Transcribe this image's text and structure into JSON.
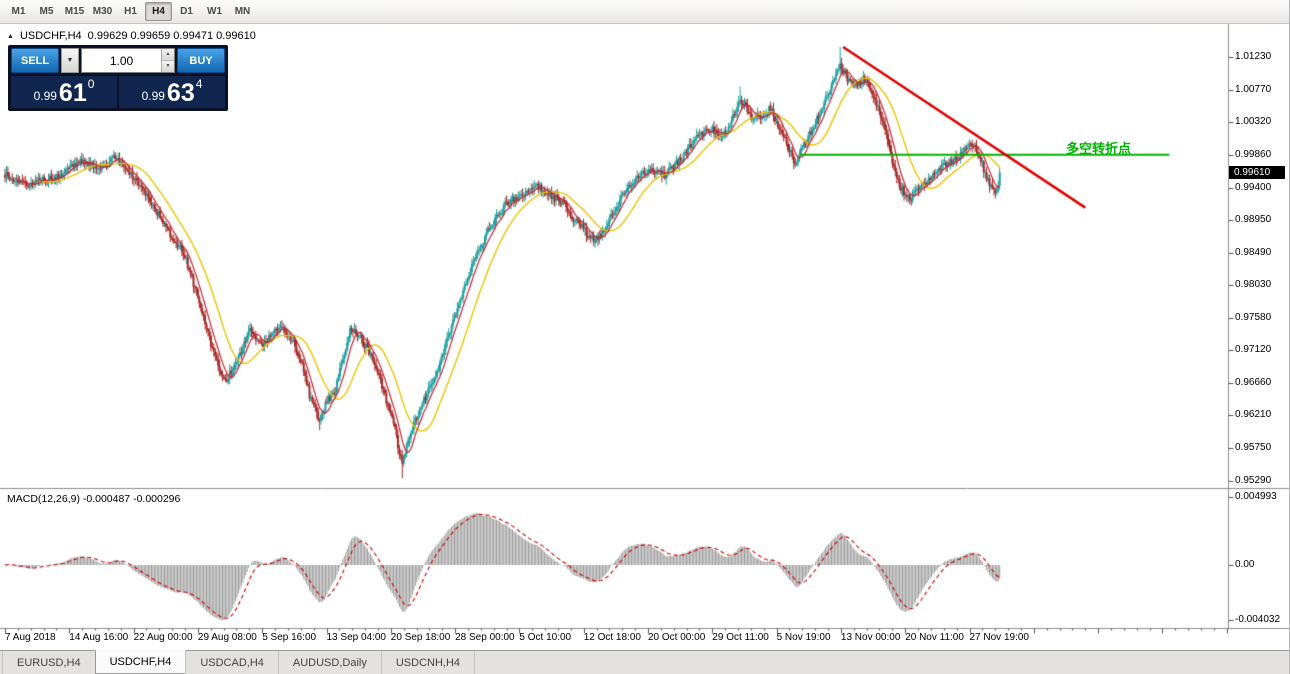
{
  "toolbar": {
    "timeframes": [
      {
        "label": "M1",
        "active": false
      },
      {
        "label": "M5",
        "active": false
      },
      {
        "label": "M15",
        "active": false
      },
      {
        "label": "M30",
        "active": false
      },
      {
        "label": "H1",
        "active": false
      },
      {
        "label": "H4",
        "active": true
      },
      {
        "label": "D1",
        "active": false
      },
      {
        "label": "W1",
        "active": false
      },
      {
        "label": "MN",
        "active": false
      }
    ]
  },
  "icons": {
    "collapse": "▲",
    "dropdown": "▼",
    "spin_up": "▲",
    "spin_down": "▼"
  },
  "chart": {
    "symbol_label": "USDCHF,H4",
    "ohlc_text": "0.99629 0.99659 0.99471 0.99610",
    "current_price": "0.99610",
    "annotation_text": "多空转折点",
    "trade_panel": {
      "sell_label": "SELL",
      "buy_label": "BUY",
      "volume": "1.00",
      "sell_price": {
        "big": "0.99",
        "mid": "61",
        "sup": "0"
      },
      "buy_price": {
        "big": "0.99",
        "mid": "63",
        "sup": "4"
      }
    },
    "price_axis": [
      "1.01230",
      "1.00770",
      "1.00320",
      "0.99860",
      "0.99400",
      "0.98950",
      "0.98490",
      "0.98030",
      "0.97580",
      "0.97120",
      "0.96660",
      "0.96210",
      "0.95750",
      "0.95290"
    ],
    "time_axis": [
      "7 Aug 2018",
      "14 Aug 16:00",
      "22 Aug 00:00",
      "29 Aug 08:00",
      "5 Sep 16:00",
      "13 Sep 04:00",
      "20 Sep 18:00",
      "28 Sep 00:00",
      "5 Oct 10:00",
      "12 Oct 18:00",
      "20 Oct 00:00",
      "29 Oct 11:00",
      "5 Nov 19:00",
      "13 Nov 00:00",
      "20 Nov 11:00",
      "27 Nov 19:00"
    ]
  },
  "macd": {
    "label": "MACD(12,26,9) -0.000487 -0.000296",
    "axis": [
      "0.004993",
      "0.00",
      "-0.004032"
    ]
  },
  "tabs": [
    {
      "label": "EURUSD,H4",
      "active": false
    },
    {
      "label": "USDCHF,H4",
      "active": true
    },
    {
      "label": "USDCAD,H4",
      "active": false
    },
    {
      "label": "AUDUSD,Daily",
      "active": false
    },
    {
      "label": "USDCNH,H4",
      "active": false
    }
  ],
  "chart_data": {
    "type": "candlestick",
    "symbol": "USDCHF",
    "timeframe": "H4",
    "bars": 687,
    "last_close": 0.9961,
    "ylim": [
      0.9529,
      1.0123
    ],
    "colors": {
      "up": "#20a0a0",
      "down": "#a82828",
      "ma_fast": "#cc2233",
      "ma_slow": "#e9c400",
      "macd_hist": "#9a9a9a",
      "macd_signal": "#cc0000",
      "trendline": "#dd0000",
      "hline": "#00b300"
    },
    "indicators": {
      "ma_fast_period": 8,
      "ma_slow_period": 24,
      "macd": [
        12,
        26,
        9
      ]
    },
    "price_anchors": [
      [
        0,
        0.9958
      ],
      [
        8,
        0.995
      ],
      [
        17,
        0.9944
      ],
      [
        26,
        0.995
      ],
      [
        34,
        0.9954
      ],
      [
        44,
        0.9966
      ],
      [
        52,
        0.9976
      ],
      [
        60,
        0.997
      ],
      [
        66,
        0.9965
      ],
      [
        76,
        0.9985
      ],
      [
        86,
        0.9958
      ],
      [
        100,
        0.9923
      ],
      [
        114,
        0.9874
      ],
      [
        124,
        0.9846
      ],
      [
        131,
        0.98
      ],
      [
        138,
        0.975
      ],
      [
        145,
        0.97
      ],
      [
        152,
        0.9668
      ],
      [
        158,
        0.969
      ],
      [
        162,
        0.9706
      ],
      [
        169,
        0.9741
      ],
      [
        175,
        0.9726
      ],
      [
        179,
        0.972
      ],
      [
        185,
        0.9736
      ],
      [
        190,
        0.9744
      ],
      [
        196,
        0.973
      ],
      [
        200,
        0.972
      ],
      [
        205,
        0.969
      ],
      [
        210,
        0.965
      ],
      [
        217,
        0.9613
      ],
      [
        222,
        0.964
      ],
      [
        228,
        0.9657
      ],
      [
        233,
        0.97
      ],
      [
        238,
        0.9742
      ],
      [
        243,
        0.9735
      ],
      [
        248,
        0.972
      ],
      [
        254,
        0.97
      ],
      [
        259,
        0.9671
      ],
      [
        264,
        0.9635
      ],
      [
        269,
        0.96
      ],
      [
        272,
        0.957
      ],
      [
        274,
        0.9552
      ],
      [
        277,
        0.958
      ],
      [
        283,
        0.9615
      ],
      [
        288,
        0.964
      ],
      [
        293,
        0.9658
      ],
      [
        298,
        0.968
      ],
      [
        303,
        0.9713
      ],
      [
        308,
        0.9745
      ],
      [
        314,
        0.9783
      ],
      [
        319,
        0.9815
      ],
      [
        324,
        0.984
      ],
      [
        329,
        0.9862
      ],
      [
        334,
        0.9882
      ],
      [
        340,
        0.99
      ],
      [
        345,
        0.9916
      ],
      [
        350,
        0.9922
      ],
      [
        355,
        0.993
      ],
      [
        360,
        0.9938
      ],
      [
        366,
        0.9945
      ],
      [
        371,
        0.9938
      ],
      [
        376,
        0.993
      ],
      [
        381,
        0.9923
      ],
      [
        386,
        0.9916
      ],
      [
        391,
        0.99
      ],
      [
        397,
        0.9888
      ],
      [
        402,
        0.9875
      ],
      [
        407,
        0.9866
      ],
      [
        411,
        0.9872
      ],
      [
        414,
        0.9882
      ],
      [
        419,
        0.9902
      ],
      [
        424,
        0.9923
      ],
      [
        429,
        0.9938
      ],
      [
        434,
        0.9952
      ],
      [
        440,
        0.996
      ],
      [
        445,
        0.9966
      ],
      [
        450,
        0.996
      ],
      [
        455,
        0.9957
      ],
      [
        460,
        0.9968
      ],
      [
        466,
        0.998
      ],
      [
        471,
        0.9994
      ],
      [
        476,
        1.0008
      ],
      [
        481,
        1.0016
      ],
      [
        486,
        1.0022
      ],
      [
        491,
        1.0018
      ],
      [
        497,
        1.0014
      ],
      [
        502,
        1.004
      ],
      [
        507,
        1.0065
      ],
      [
        512,
        1.0048
      ],
      [
        517,
        1.0036
      ],
      [
        522,
        1.0042
      ],
      [
        528,
        1.005
      ],
      [
        533,
        1.0028
      ],
      [
        538,
        1.0008
      ],
      [
        542,
        0.9988
      ],
      [
        545,
        0.9972
      ],
      [
        549,
        0.999
      ],
      [
        555,
        1.0015
      ],
      [
        560,
        1.0038
      ],
      [
        566,
        1.0063
      ],
      [
        571,
        1.0088
      ],
      [
        576,
        1.0112
      ],
      [
        580,
        1.0096
      ],
      [
        586,
        1.0084
      ],
      [
        590,
        1.0088
      ],
      [
        593,
        1.0092
      ],
      [
        598,
        1.007
      ],
      [
        603,
        1.0049
      ],
      [
        607,
        1.002
      ],
      [
        610,
        0.9994
      ],
      [
        614,
        0.9964
      ],
      [
        617,
        0.9944
      ],
      [
        621,
        0.993
      ],
      [
        624,
        0.9924
      ],
      [
        628,
        0.9934
      ],
      [
        631,
        0.9944
      ],
      [
        635,
        0.9948
      ],
      [
        638,
        0.9952
      ],
      [
        643,
        0.996
      ],
      [
        648,
        0.9972
      ],
      [
        652,
        0.9976
      ],
      [
        655,
        0.9979
      ],
      [
        659,
        0.9986
      ],
      [
        662,
        0.9992
      ],
      [
        666,
        0.9998
      ],
      [
        669,
        1.0
      ],
      [
        672,
        0.9984
      ],
      [
        676,
        0.9958
      ],
      [
        680,
        0.994
      ],
      [
        683,
        0.993
      ],
      [
        685,
        0.9946
      ],
      [
        686,
        0.9961
      ]
    ],
    "wick_events": [
      [
        217,
        -0.0008
      ],
      [
        274,
        -0.0016
      ],
      [
        507,
        0.001
      ],
      [
        576,
        0.002
      ]
    ],
    "annotations": [
      {
        "type": "hline",
        "price": 0.9986,
        "from_bar": 548,
        "to_bar": 803,
        "color": "#00b300",
        "width": 2
      },
      {
        "type": "trendline",
        "from": [
          578,
          1.0137
        ],
        "to": [
          745,
          0.9912
        ],
        "color": "#dd0000",
        "width": 2.5
      }
    ]
  }
}
